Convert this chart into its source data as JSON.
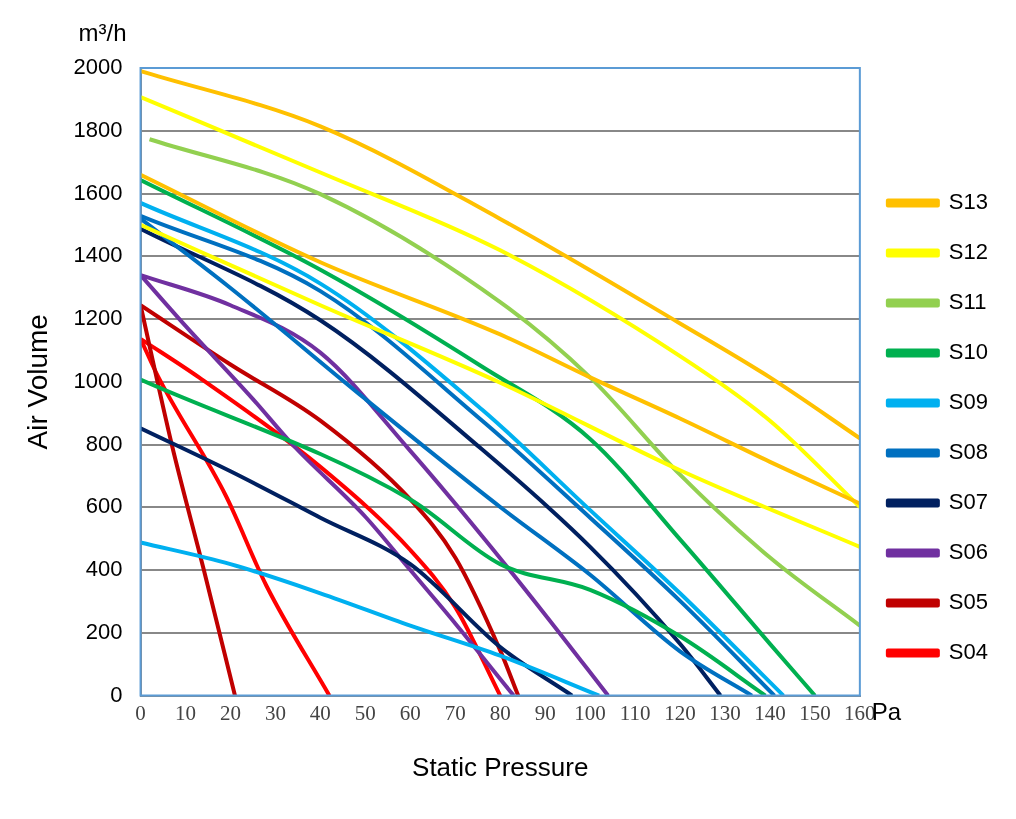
{
  "chart_data": {
    "type": "line",
    "xlabel": "Static Pressure",
    "ylabel": "Air Volume",
    "annotations": [
      "m³/h",
      "Pa"
    ],
    "xlim": [
      0,
      160
    ],
    "xticks": [
      0,
      10,
      20,
      30,
      40,
      50,
      60,
      70,
      80,
      90,
      100,
      110,
      120,
      130,
      140,
      150,
      160
    ],
    "ylim": [
      0,
      2000
    ],
    "yticks": [
      0,
      200,
      400,
      600,
      800,
      1000,
      1200,
      1400,
      1600,
      1800,
      2000
    ],
    "grid": "y",
    "legend": "right",
    "marker": "none",
    "line_style": "solid",
    "series": [
      {
        "name": "S13",
        "color": "#ffc000",
        "x": [
          0,
          40,
          80,
          120,
          140,
          160
        ],
        "values": [
          1990,
          1814,
          1519,
          1186,
          1014,
          820
        ]
      },
      {
        "color": "#ffc000",
        "x": [
          0,
          40,
          80,
          100,
          120,
          140,
          160
        ],
        "values": [
          1660,
          1381,
          1151,
          1014,
          883,
          745,
          612
        ]
      },
      {
        "name": "S12",
        "color": "#ffff00",
        "x": [
          0,
          40,
          80,
          120,
          140,
          160
        ],
        "values": [
          1907,
          1667,
          1419,
          1082,
          876,
          601
        ]
      },
      {
        "color": "#ffff00",
        "x": [
          0,
          40,
          80,
          120,
          160
        ],
        "values": [
          1500,
          1244,
          997,
          718,
          474
        ]
      },
      {
        "name": "S11",
        "color": "#92d050",
        "x": [
          2,
          40,
          80,
          100,
          120,
          140,
          160
        ],
        "values": [
          1773,
          1598,
          1254,
          1014,
          704,
          440,
          223
        ]
      },
      {
        "name": "S10",
        "color": "#00b050",
        "x": [
          0,
          40,
          76,
          100,
          120,
          140,
          150
        ],
        "values": [
          1643,
          1357,
          1048,
          818,
          498,
          165,
          0
        ]
      },
      {
        "color": "#00b050",
        "x": [
          0,
          60,
          80,
          100,
          120,
          139
        ],
        "values": [
          1007,
          625,
          419,
          337,
          189,
          0
        ]
      },
      {
        "name": "S09",
        "color": "#00b0f0",
        "x": [
          0,
          40,
          76,
          100,
          120,
          143
        ],
        "values": [
          1570,
          1313,
          911,
          591,
          326,
          0
        ]
      },
      {
        "color": "#00b0f0",
        "x": [
          0,
          20,
          40,
          60,
          80,
          102
        ],
        "values": [
          488,
          419,
          326,
          223,
          127,
          0
        ]
      },
      {
        "name": "S08",
        "color": "#0070c0",
        "x": [
          0,
          40,
          76,
          100,
          120,
          141
        ],
        "values": [
          1529,
          1289,
          876,
          567,
          302,
          0
        ]
      },
      {
        "color": "#0070c0",
        "x": [
          0,
          20,
          50,
          80,
          100,
          120,
          136
        ],
        "values": [
          1520,
          1299,
          945,
          601,
          385,
          141,
          0
        ]
      },
      {
        "name": "S07",
        "color": "#002060",
        "x": [
          0,
          40,
          76,
          100,
          120,
          129
        ],
        "values": [
          1488,
          1196,
          784,
          474,
          165,
          0
        ]
      },
      {
        "color": "#002060",
        "x": [
          0,
          20,
          40,
          60,
          80,
          96
        ],
        "values": [
          852,
          715,
          567,
          419,
          155,
          0
        ]
      },
      {
        "name": "S06",
        "color": "#7030a0",
        "x": [
          0,
          20,
          40,
          60,
          76,
          90,
          104
        ],
        "values": [
          1340,
          1244,
          1093,
          780,
          508,
          258,
          0
        ]
      },
      {
        "color": "#7030a0",
        "x": [
          0,
          10,
          25,
          34,
          50,
          60,
          70,
          83
        ],
        "values": [
          1340,
          1178,
          945,
          797,
          570,
          400,
          230,
          0
        ]
      },
      {
        "name": "S05",
        "color": "#c00000",
        "x": [
          0,
          20,
          40,
          60,
          70,
          80,
          84
        ],
        "values": [
          1244,
          1055,
          876,
          625,
          440,
          144,
          0
        ]
      },
      {
        "color": "#c00000",
        "x": [
          0,
          7,
          14,
          21
        ],
        "values": [
          1244,
          797,
          405,
          0
        ]
      },
      {
        "name": "S04",
        "color": "#ff0000",
        "x": [
          0,
          13,
          40,
          60,
          70,
          80
        ],
        "values": [
          1137,
          1014,
          729,
          464,
          282,
          0
        ]
      },
      {
        "color": "#ff0000",
        "x": [
          0,
          4,
          19,
          28,
          42
        ],
        "values": [
          1137,
          1014,
          636,
          350,
          0
        ]
      }
    ]
  }
}
